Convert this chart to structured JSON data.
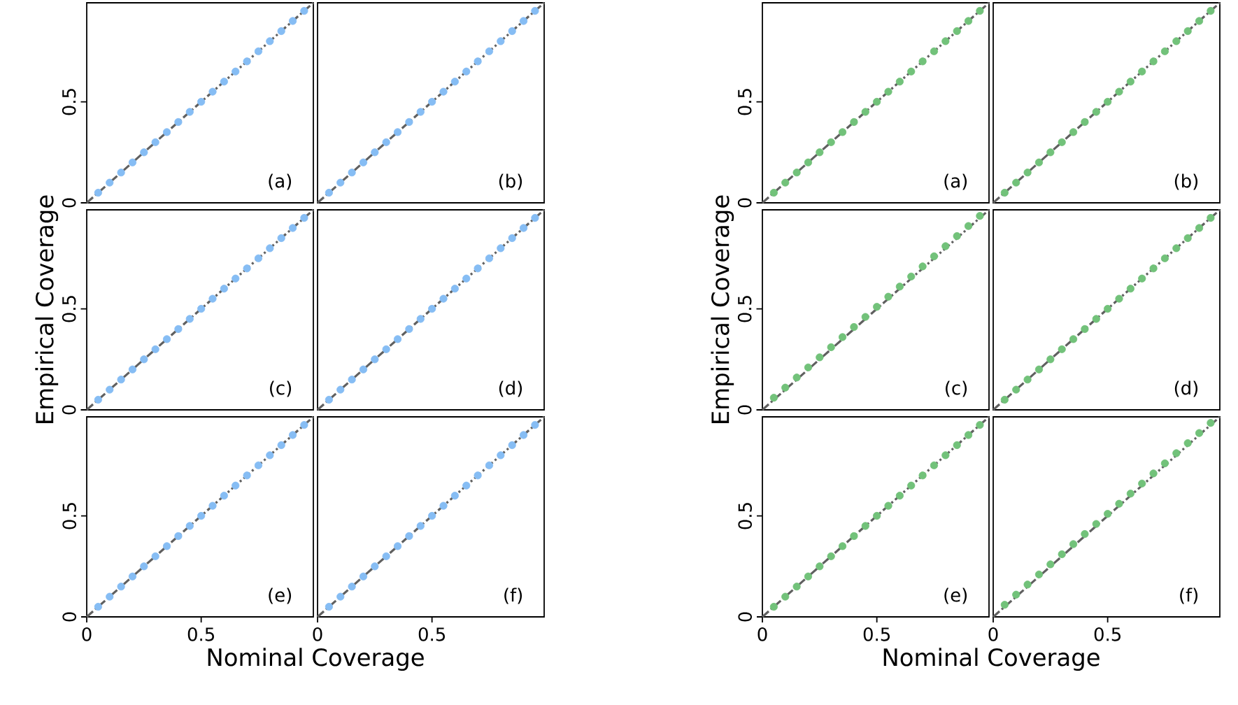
{
  "chart_data": [
    {
      "type": "scatter",
      "xlim": [
        0,
        0.99
      ],
      "ylim": [
        0,
        0.99
      ],
      "xticks": [
        0,
        0.5
      ],
      "yticks": [
        0,
        0.5
      ],
      "tick_labels": "y",
      "annotations": [
        "(a)"
      ],
      "series": [
        {
          "marker": "circle",
          "color": "#86bdf4",
          "x": [
            0.05,
            0.1,
            0.15,
            0.2,
            0.25,
            0.3,
            0.35,
            0.4,
            0.45,
            0.5,
            0.55,
            0.6,
            0.65,
            0.7,
            0.75,
            0.8,
            0.85,
            0.9,
            0.95
          ],
          "values": [
            0.05,
            0.1,
            0.15,
            0.2,
            0.25,
            0.3,
            0.35,
            0.4,
            0.45,
            0.5,
            0.55,
            0.6,
            0.65,
            0.7,
            0.75,
            0.8,
            0.85,
            0.9,
            0.95
          ]
        },
        {
          "type": "line",
          "color": "#606060",
          "line_style": "dashed",
          "x": [
            0,
            0.99
          ],
          "values": [
            0,
            0.99
          ]
        }
      ]
    },
    {
      "type": "scatter",
      "xlim": [
        0,
        0.99
      ],
      "ylim": [
        0,
        0.99
      ],
      "xticks": [
        0,
        0.5
      ],
      "yticks": [
        0,
        0.5
      ],
      "tick_labels": false,
      "annotations": [
        "(b)"
      ],
      "series": [
        {
          "marker": "circle",
          "color": "#86bdf4",
          "x": [
            0.05,
            0.1,
            0.15,
            0.2,
            0.25,
            0.3,
            0.35,
            0.4,
            0.45,
            0.5,
            0.55,
            0.6,
            0.65,
            0.7,
            0.75,
            0.8,
            0.85,
            0.9,
            0.95
          ],
          "values": [
            0.05,
            0.1,
            0.15,
            0.2,
            0.25,
            0.3,
            0.35,
            0.4,
            0.45,
            0.5,
            0.55,
            0.6,
            0.65,
            0.7,
            0.75,
            0.8,
            0.85,
            0.9,
            0.95
          ]
        },
        {
          "type": "line",
          "color": "#606060",
          "line_style": "dashed",
          "x": [
            0,
            0.99
          ],
          "values": [
            0,
            0.99
          ]
        }
      ]
    },
    {
      "type": "scatter",
      "xlim": [
        0,
        0.99
      ],
      "ylim": [
        0,
        0.99
      ],
      "xticks": [
        0,
        0.5
      ],
      "yticks": [
        0,
        0.5
      ],
      "tick_labels": "y",
      "ylabel": "Empirical Coverage",
      "annotations": [
        "(c)"
      ],
      "series": [
        {
          "marker": "circle",
          "color": "#86bdf4",
          "x": [
            0.05,
            0.1,
            0.15,
            0.2,
            0.25,
            0.3,
            0.35,
            0.4,
            0.45,
            0.5,
            0.55,
            0.6,
            0.65,
            0.7,
            0.75,
            0.8,
            0.85,
            0.9,
            0.95
          ],
          "values": [
            0.05,
            0.1,
            0.15,
            0.2,
            0.25,
            0.3,
            0.35,
            0.4,
            0.45,
            0.5,
            0.55,
            0.6,
            0.65,
            0.7,
            0.75,
            0.8,
            0.85,
            0.9,
            0.95
          ]
        },
        {
          "type": "line",
          "color": "#606060",
          "line_style": "dashed",
          "x": [
            0,
            0.99
          ],
          "values": [
            0,
            0.99
          ]
        }
      ]
    },
    {
      "type": "scatter",
      "xlim": [
        0,
        0.99
      ],
      "ylim": [
        0,
        0.99
      ],
      "xticks": [
        0,
        0.5
      ],
      "yticks": [
        0,
        0.5
      ],
      "tick_labels": false,
      "annotations": [
        "(d)"
      ],
      "series": [
        {
          "marker": "circle",
          "color": "#86bdf4",
          "x": [
            0.05,
            0.1,
            0.15,
            0.2,
            0.25,
            0.3,
            0.35,
            0.4,
            0.45,
            0.5,
            0.55,
            0.6,
            0.65,
            0.7,
            0.75,
            0.8,
            0.85,
            0.9,
            0.95
          ],
          "values": [
            0.05,
            0.1,
            0.15,
            0.2,
            0.25,
            0.3,
            0.35,
            0.4,
            0.45,
            0.5,
            0.55,
            0.6,
            0.65,
            0.7,
            0.75,
            0.8,
            0.85,
            0.9,
            0.95
          ]
        },
        {
          "type": "line",
          "color": "#606060",
          "line_style": "dashed",
          "x": [
            0,
            0.99
          ],
          "values": [
            0,
            0.99
          ]
        }
      ]
    },
    {
      "type": "scatter",
      "xlim": [
        0,
        0.99
      ],
      "ylim": [
        0,
        0.99
      ],
      "xticks": [
        0,
        0.5
      ],
      "yticks": [
        0,
        0.5
      ],
      "xlabel": "Nominal Coverage",
      "annotations": [
        "(e)"
      ],
      "series": [
        {
          "marker": "circle",
          "color": "#86bdf4",
          "x": [
            0.05,
            0.1,
            0.15,
            0.2,
            0.25,
            0.3,
            0.35,
            0.4,
            0.45,
            0.5,
            0.55,
            0.6,
            0.65,
            0.7,
            0.75,
            0.8,
            0.85,
            0.9,
            0.95
          ],
          "values": [
            0.05,
            0.1,
            0.15,
            0.2,
            0.25,
            0.3,
            0.35,
            0.4,
            0.45,
            0.5,
            0.55,
            0.6,
            0.65,
            0.7,
            0.75,
            0.8,
            0.85,
            0.9,
            0.95
          ]
        },
        {
          "type": "line",
          "color": "#606060",
          "line_style": "dashed",
          "x": [
            0,
            0.99
          ],
          "values": [
            0,
            0.99
          ]
        }
      ]
    },
    {
      "type": "scatter",
      "xlim": [
        0,
        0.99
      ],
      "ylim": [
        0,
        0.99
      ],
      "xticks": [
        0,
        0.5
      ],
      "yticks": [
        0,
        0.5
      ],
      "tick_labels": "x",
      "annotations": [
        "(f)"
      ],
      "series": [
        {
          "marker": "circle",
          "color": "#86bdf4",
          "x": [
            0.05,
            0.1,
            0.15,
            0.2,
            0.25,
            0.3,
            0.35,
            0.4,
            0.45,
            0.5,
            0.55,
            0.6,
            0.65,
            0.7,
            0.75,
            0.8,
            0.85,
            0.9,
            0.95
          ],
          "values": [
            0.05,
            0.1,
            0.15,
            0.2,
            0.25,
            0.3,
            0.35,
            0.4,
            0.45,
            0.5,
            0.55,
            0.6,
            0.65,
            0.7,
            0.75,
            0.8,
            0.85,
            0.9,
            0.95
          ]
        },
        {
          "type": "line",
          "color": "#606060",
          "line_style": "dashed",
          "x": [
            0,
            0.99
          ],
          "values": [
            0,
            0.99
          ]
        }
      ]
    },
    {
      "type": "scatter",
      "xlim": [
        0,
        0.99
      ],
      "ylim": [
        0,
        0.99
      ],
      "xticks": [
        0,
        0.5
      ],
      "yticks": [
        0,
        0.5
      ],
      "tick_labels": "y",
      "annotations": [
        "(a)"
      ],
      "series": [
        {
          "marker": "circle",
          "color": "#72c27a",
          "x": [
            0.05,
            0.1,
            0.15,
            0.2,
            0.25,
            0.3,
            0.35,
            0.4,
            0.45,
            0.5,
            0.55,
            0.6,
            0.65,
            0.7,
            0.75,
            0.8,
            0.85,
            0.9,
            0.95
          ],
          "values": [
            0.05,
            0.1,
            0.15,
            0.2,
            0.25,
            0.3,
            0.35,
            0.4,
            0.45,
            0.5,
            0.55,
            0.6,
            0.65,
            0.7,
            0.75,
            0.8,
            0.85,
            0.9,
            0.95
          ]
        },
        {
          "type": "line",
          "color": "#606060",
          "line_style": "dashed",
          "x": [
            0,
            0.99
          ],
          "values": [
            0,
            0.99
          ]
        }
      ]
    },
    {
      "type": "scatter",
      "xlim": [
        0,
        0.99
      ],
      "ylim": [
        0,
        0.99
      ],
      "xticks": [
        0,
        0.5
      ],
      "yticks": [
        0,
        0.5
      ],
      "tick_labels": false,
      "annotations": [
        "(b)"
      ],
      "series": [
        {
          "marker": "circle",
          "color": "#72c27a",
          "x": [
            0.05,
            0.1,
            0.15,
            0.2,
            0.25,
            0.3,
            0.35,
            0.4,
            0.45,
            0.5,
            0.55,
            0.6,
            0.65,
            0.7,
            0.75,
            0.8,
            0.85,
            0.9,
            0.95
          ],
          "values": [
            0.05,
            0.1,
            0.15,
            0.2,
            0.25,
            0.3,
            0.35,
            0.4,
            0.45,
            0.5,
            0.55,
            0.6,
            0.65,
            0.7,
            0.75,
            0.8,
            0.85,
            0.9,
            0.95
          ]
        },
        {
          "type": "line",
          "color": "#606060",
          "line_style": "dashed",
          "x": [
            0,
            0.99
          ],
          "values": [
            0,
            0.99
          ]
        }
      ]
    },
    {
      "type": "scatter",
      "xlim": [
        0,
        0.99
      ],
      "ylim": [
        0,
        0.99
      ],
      "xticks": [
        0,
        0.5
      ],
      "yticks": [
        0,
        0.5
      ],
      "tick_labels": "y",
      "ylabel": "Empirical Coverage",
      "annotations": [
        "(c)"
      ],
      "series": [
        {
          "marker": "circle",
          "color": "#72c27a",
          "x": [
            0.05,
            0.1,
            0.15,
            0.2,
            0.25,
            0.3,
            0.35,
            0.4,
            0.45,
            0.5,
            0.55,
            0.6,
            0.65,
            0.7,
            0.75,
            0.8,
            0.85,
            0.9,
            0.95
          ],
          "values": [
            0.06,
            0.11,
            0.16,
            0.21,
            0.26,
            0.31,
            0.36,
            0.41,
            0.46,
            0.51,
            0.56,
            0.61,
            0.66,
            0.71,
            0.76,
            0.81,
            0.86,
            0.91,
            0.96
          ]
        },
        {
          "type": "line",
          "color": "#606060",
          "line_style": "dashed",
          "x": [
            0,
            0.99
          ],
          "values": [
            0,
            0.99
          ]
        }
      ]
    },
    {
      "type": "scatter",
      "xlim": [
        0,
        0.99
      ],
      "ylim": [
        0,
        0.99
      ],
      "xticks": [
        0,
        0.5
      ],
      "yticks": [
        0,
        0.5
      ],
      "tick_labels": false,
      "annotations": [
        "(d)"
      ],
      "series": [
        {
          "marker": "circle",
          "color": "#72c27a",
          "x": [
            0.05,
            0.1,
            0.15,
            0.2,
            0.25,
            0.3,
            0.35,
            0.4,
            0.45,
            0.5,
            0.55,
            0.6,
            0.65,
            0.7,
            0.75,
            0.8,
            0.85,
            0.9,
            0.95
          ],
          "values": [
            0.05,
            0.1,
            0.15,
            0.2,
            0.25,
            0.3,
            0.35,
            0.4,
            0.45,
            0.5,
            0.55,
            0.6,
            0.65,
            0.7,
            0.75,
            0.8,
            0.85,
            0.9,
            0.95
          ]
        },
        {
          "type": "line",
          "color": "#606060",
          "line_style": "dashed",
          "x": [
            0,
            0.99
          ],
          "values": [
            0,
            0.99
          ]
        }
      ]
    },
    {
      "type": "scatter",
      "xlim": [
        0,
        0.99
      ],
      "ylim": [
        0,
        0.99
      ],
      "xticks": [
        0,
        0.5
      ],
      "yticks": [
        0,
        0.5
      ],
      "xlabel": "Nominal Coverage",
      "annotations": [
        "(e)"
      ],
      "series": [
        {
          "marker": "circle",
          "color": "#72c27a",
          "x": [
            0.05,
            0.1,
            0.15,
            0.2,
            0.25,
            0.3,
            0.35,
            0.4,
            0.45,
            0.5,
            0.55,
            0.6,
            0.65,
            0.7,
            0.75,
            0.8,
            0.85,
            0.9,
            0.95
          ],
          "values": [
            0.05,
            0.1,
            0.15,
            0.2,
            0.25,
            0.3,
            0.35,
            0.4,
            0.45,
            0.5,
            0.55,
            0.6,
            0.65,
            0.7,
            0.75,
            0.8,
            0.85,
            0.9,
            0.95
          ]
        },
        {
          "type": "line",
          "color": "#606060",
          "line_style": "dashed",
          "x": [
            0,
            0.99
          ],
          "values": [
            0,
            0.99
          ]
        }
      ]
    },
    {
      "type": "scatter",
      "xlim": [
        0,
        0.99
      ],
      "ylim": [
        0,
        0.99
      ],
      "xticks": [
        0,
        0.5
      ],
      "yticks": [
        0,
        0.5
      ],
      "tick_labels": "x",
      "annotations": [
        "(f)"
      ],
      "series": [
        {
          "marker": "circle",
          "color": "#72c27a",
          "x": [
            0.05,
            0.1,
            0.15,
            0.2,
            0.25,
            0.3,
            0.35,
            0.4,
            0.45,
            0.5,
            0.55,
            0.6,
            0.65,
            0.7,
            0.75,
            0.8,
            0.85,
            0.9,
            0.95
          ],
          "values": [
            0.06,
            0.11,
            0.16,
            0.21,
            0.26,
            0.31,
            0.36,
            0.41,
            0.46,
            0.51,
            0.56,
            0.61,
            0.66,
            0.71,
            0.76,
            0.81,
            0.86,
            0.91,
            0.96
          ]
        },
        {
          "type": "line",
          "color": "#606060",
          "line_style": "dashed",
          "x": [
            0,
            0.99
          ],
          "values": [
            0,
            0.99
          ]
        }
      ]
    }
  ]
}
